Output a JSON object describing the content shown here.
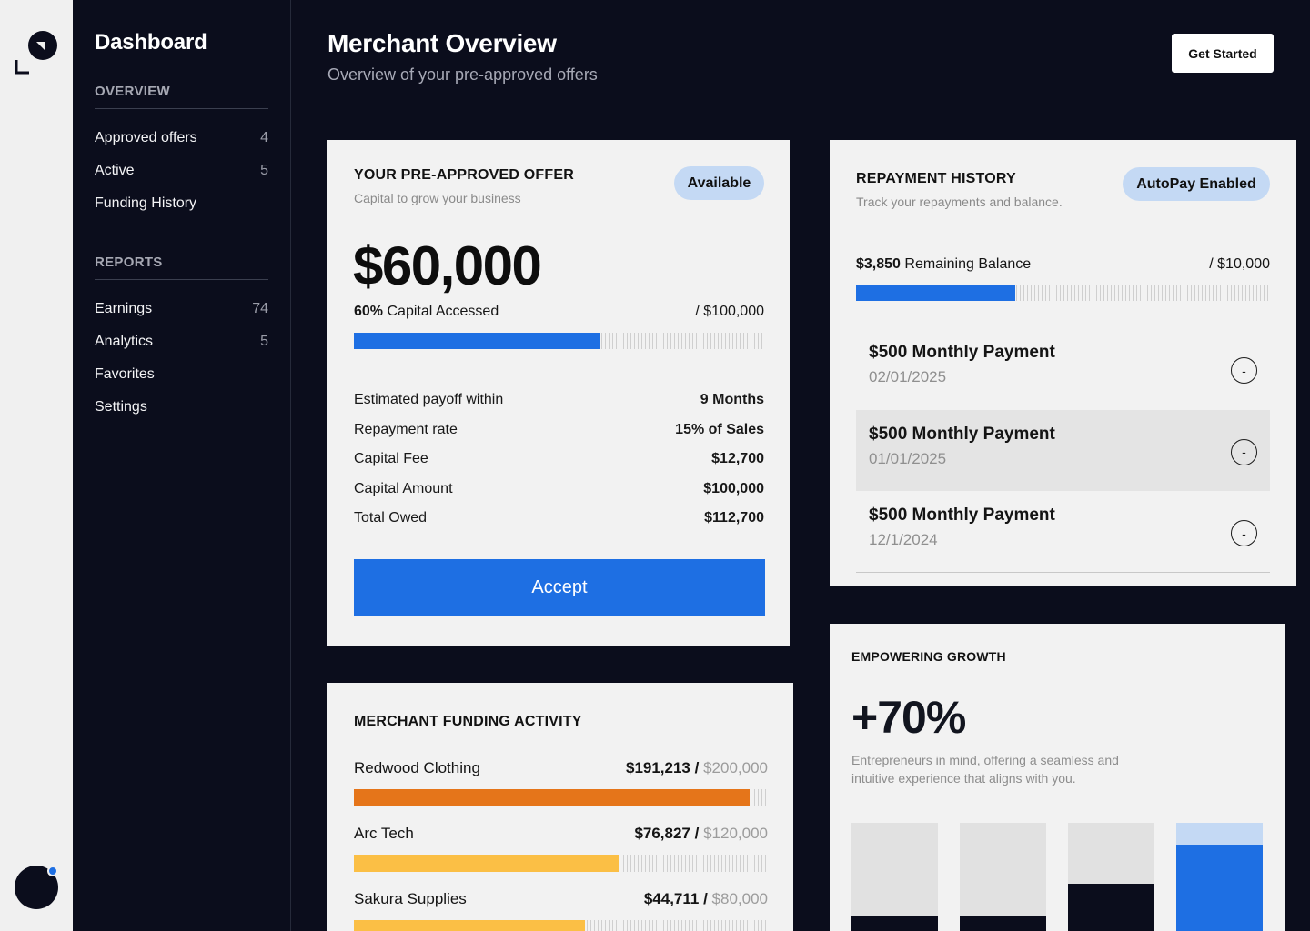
{
  "colors": {
    "accent": "#1e6fe3",
    "background": "#0b0d1c",
    "card": "#f2f2f2",
    "pill": "#c4d9f4",
    "orange": "#e5751a",
    "yellow": "#fbbf45"
  },
  "sidebar": {
    "title": "Dashboard",
    "overview_heading": "OVERVIEW",
    "overview_items": [
      {
        "label": "Approved offers",
        "count": "4"
      },
      {
        "label": "Active",
        "count": "5"
      },
      {
        "label": "Funding History",
        "count": ""
      }
    ],
    "reports_heading": "REPORTS",
    "reports_items": [
      {
        "label": "Earnings",
        "count": "74"
      },
      {
        "label": "Analytics",
        "count": "5"
      },
      {
        "label": "Favorites",
        "count": ""
      },
      {
        "label": "Settings",
        "count": ""
      }
    ]
  },
  "header": {
    "title": "Merchant Overview",
    "subtitle": "Overview of your pre-approved offers",
    "cta_label": "Get Started"
  },
  "offer": {
    "heading": "YOUR PRE-APPROVED OFFER",
    "subheading": "Capital to grow your business",
    "status": "Available",
    "amount": "$60,000",
    "accessed_percent": "60%",
    "accessed_label": "Capital Accessed",
    "accessed_fraction": 0.6,
    "total": "/ $100,000",
    "terms": [
      {
        "label": "Estimated payoff within",
        "value": "9 Months"
      },
      {
        "label": "Repayment rate",
        "value": "15% of Sales"
      },
      {
        "label": "Capital Fee",
        "value": "$12,700"
      },
      {
        "label": "Capital Amount",
        "value": "$100,000"
      },
      {
        "label": "Total Owed",
        "value": "$112,700"
      }
    ],
    "accept_label": "Accept"
  },
  "repayment": {
    "heading": "REPAYMENT HISTORY",
    "subheading": "Track your repayments and balance.",
    "status": "AutoPay Enabled",
    "balance_amount": "$3,850",
    "balance_label": "Remaining Balance",
    "balance_total": "/ $10,000",
    "balance_fraction": 0.385,
    "payments": [
      {
        "title": "$500 Monthly Payment",
        "date": "02/01/2025",
        "icon": "-"
      },
      {
        "title": "$500 Monthly Payment",
        "date": "01/01/2025",
        "icon": "-"
      },
      {
        "title": "$500 Monthly Payment",
        "date": "12/1/2024",
        "icon": "-"
      }
    ]
  },
  "funding": {
    "heading": "MERCHANT FUNDING ACTIVITY",
    "rows": [
      {
        "name": "Redwood Clothing",
        "amount": "$191,213",
        "sep": "/",
        "cap": "$200,000",
        "fraction": 0.956,
        "color": "#e5751a"
      },
      {
        "name": "Arc Tech",
        "amount": "$76,827",
        "sep": "/",
        "cap": "$120,000",
        "fraction": 0.64,
        "color": "#fbbf45"
      },
      {
        "name": "Sakura Supplies",
        "amount": "$44,711",
        "sep": "/",
        "cap": "$80,000",
        "fraction": 0.559,
        "color": "#fbbf45"
      }
    ]
  },
  "growth": {
    "heading": "EMPOWERING GROWTH",
    "value": "+70%",
    "description": "Entrepreneurs in mind, offering a seamless and intuitive experience that aligns with you.",
    "bars": [
      {
        "fraction": 0.16,
        "color": "#0b0d1c",
        "track": "#e1e1e1"
      },
      {
        "fraction": 0.16,
        "color": "#0b0d1c",
        "track": "#e1e1e1"
      },
      {
        "fraction": 0.45,
        "color": "#0b0d1c",
        "track": "#e1e1e1"
      },
      {
        "fraction": 0.8,
        "color": "#1e6fe3",
        "track": "#c4d9f4"
      }
    ]
  }
}
